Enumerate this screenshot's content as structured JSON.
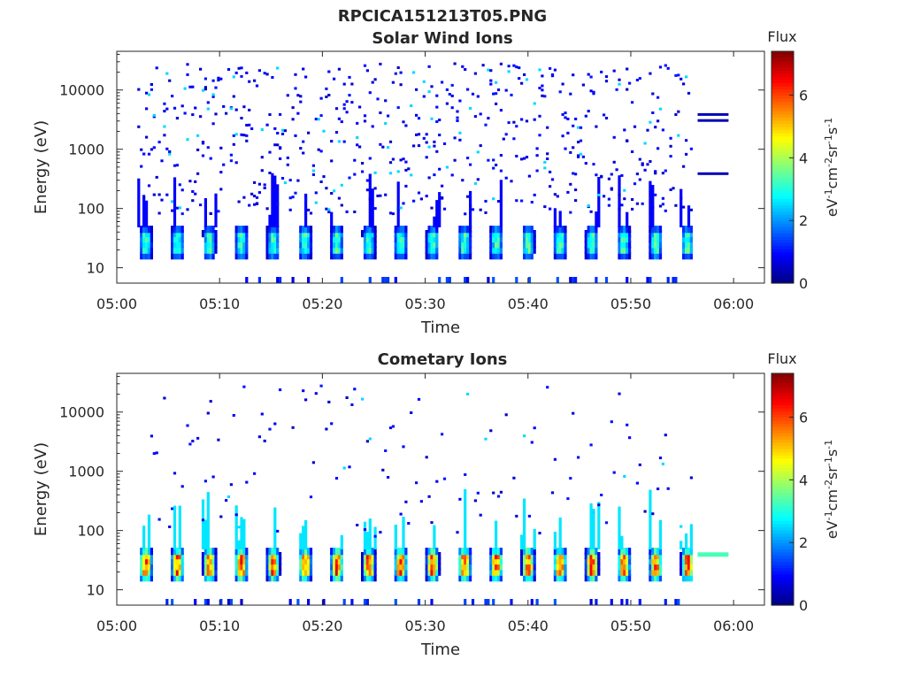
{
  "figure": {
    "title": "RPCICA151213T05.PNG"
  },
  "colors": {
    "background": "#ffffff",
    "axis": "#262626"
  },
  "chart_data": [
    {
      "type": "heatmap",
      "title": "Solar Wind Ions",
      "xlabel": "Time",
      "ylabel": "Energy (eV)",
      "yscale": "log",
      "xlim": [
        "05:00",
        "06:03"
      ],
      "ylim": [
        5.5,
        45000
      ],
      "xticks": [
        "05:00",
        "05:10",
        "05:20",
        "05:30",
        "05:40",
        "05:50",
        "06:00"
      ],
      "yticks": [
        "10",
        "100",
        "1000",
        "10000"
      ],
      "colorbar": {
        "label": "Flux",
        "units": "eV-1cm-2sr-1s-1",
        "ticks": [
          "0",
          "2",
          "4",
          "6"
        ],
        "range": [
          0,
          7.4
        ],
        "colormap": "jet"
      },
      "data_start": "05:02",
      "data_end": "05:56",
      "band_peak_flux": 3.5,
      "trailing_lines": [
        {
          "energy": 3800,
          "from": "05:56.5",
          "to": "05:59.5",
          "flux": 0.4
        },
        {
          "energy": 3000,
          "from": "05:56.5",
          "to": "05:59.5",
          "flux": 0.4
        },
        {
          "energy": 380,
          "from": "05:56.5",
          "to": "05:59.5",
          "flux": 0.4
        }
      ]
    },
    {
      "type": "heatmap",
      "title": "Cometary Ions",
      "xlabel": "Time",
      "ylabel": "Energy (eV)",
      "yscale": "log",
      "xlim": [
        "05:00",
        "06:03"
      ],
      "ylim": [
        5.5,
        45000
      ],
      "xticks": [
        "05:00",
        "05:10",
        "05:20",
        "05:30",
        "05:40",
        "05:50",
        "06:00"
      ],
      "yticks": [
        "10",
        "100",
        "1000",
        "10000"
      ],
      "colorbar": {
        "label": "Flux",
        "units": "eV-1cm-2sr-1s-1",
        "ticks": [
          "0",
          "2",
          "4",
          "6"
        ],
        "range": [
          0,
          7.4
        ],
        "colormap": "jet"
      },
      "data_start": "05:02",
      "data_end": "05:56",
      "band_peak_flux": 6.2,
      "trailing_lines": [
        {
          "energy": 40,
          "from": "05:56.5",
          "to": "05:59.5",
          "flux": 3.3
        }
      ]
    }
  ]
}
